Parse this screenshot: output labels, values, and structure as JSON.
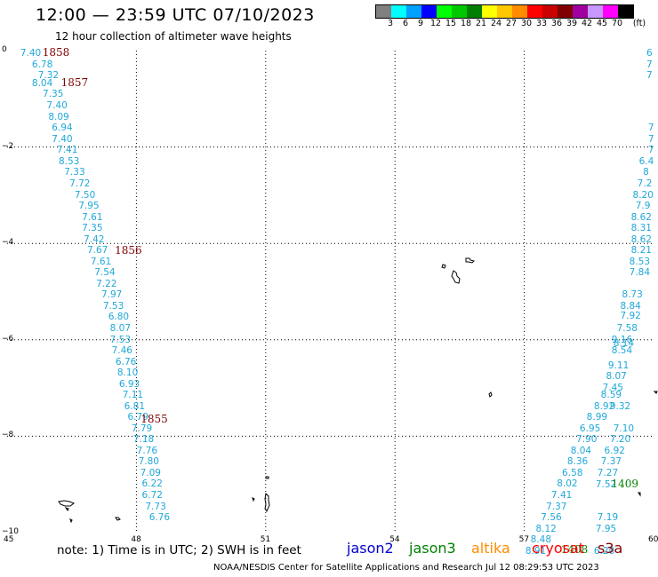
{
  "header": {
    "title": "12:00 — 23:59 UTC 07/10/2023",
    "subtitle": "12 hour collection of altimeter wave heights"
  },
  "legend": {
    "unit": "(ft)",
    "colors": [
      "#808080",
      "#00ffff",
      "#00a0ff",
      "#0000ff",
      "#00ff00",
      "#00c800",
      "#008000",
      "#ffff00",
      "#ffc800",
      "#ff8c00",
      "#ff0000",
      "#c80000",
      "#800000",
      "#a000a0",
      "#c896ff",
      "#ff00ff",
      "#000000"
    ],
    "labels": [
      "3",
      "6",
      "9",
      "12",
      "15",
      "18",
      "21",
      "24",
      "27",
      "30",
      "33",
      "36",
      "39",
      "42",
      "45",
      "70"
    ]
  },
  "axes": {
    "lon_min": 45,
    "lon_max": 60,
    "lat_min": -10,
    "lat_max": 0,
    "x_ticks": [
      "45",
      "48",
      "51",
      "54",
      "57",
      "60"
    ],
    "y_ticks": [
      "0",
      "−2",
      "−4",
      "−6",
      "−8",
      "−10"
    ]
  },
  "colors": {
    "jason2": "#0000cd",
    "jason3": "#008000",
    "altika": "#ff8c00",
    "cryosat": "#ff0000",
    "s3a": "#800000",
    "wave_cyan": "#20a8d8"
  },
  "track_west": {
    "color": "#20a8d8",
    "values": [
      {
        "lon": 45.57,
        "lat": -0.06,
        "v": "7.40"
      },
      {
        "lon": 45.84,
        "lat": -0.29,
        "v": "6.78"
      },
      {
        "lon": 45.98,
        "lat": -0.52,
        "v": "7.32"
      },
      {
        "lon": 45.84,
        "lat": -0.68,
        "v": "8.04"
      },
      {
        "lon": 46.09,
        "lat": -0.91,
        "v": "7.35"
      },
      {
        "lon": 46.18,
        "lat": -1.15,
        "v": "7.40"
      },
      {
        "lon": 46.22,
        "lat": -1.38,
        "v": "8.09"
      },
      {
        "lon": 46.3,
        "lat": -1.61,
        "v": "6.94"
      },
      {
        "lon": 46.3,
        "lat": -1.84,
        "v": "7.40"
      },
      {
        "lon": 46.42,
        "lat": -2.07,
        "v": "7.41"
      },
      {
        "lon": 46.46,
        "lat": -2.3,
        "v": "8.53"
      },
      {
        "lon": 46.59,
        "lat": -2.53,
        "v": "7.33"
      },
      {
        "lon": 46.71,
        "lat": -2.76,
        "v": "7.72"
      },
      {
        "lon": 46.83,
        "lat": -3.0,
        "v": "7.50"
      },
      {
        "lon": 46.92,
        "lat": -3.23,
        "v": "7.95"
      },
      {
        "lon": 47.0,
        "lat": -3.46,
        "v": "7.61"
      },
      {
        "lon": 47.0,
        "lat": -3.69,
        "v": "7.35"
      },
      {
        "lon": 47.04,
        "lat": -3.92,
        "v": "7.42"
      },
      {
        "lon": 47.12,
        "lat": -4.15,
        "v": "7.67"
      },
      {
        "lon": 47.2,
        "lat": -4.38,
        "v": "7.61"
      },
      {
        "lon": 47.29,
        "lat": -4.61,
        "v": "7.54"
      },
      {
        "lon": 47.33,
        "lat": -4.84,
        "v": "7.22"
      },
      {
        "lon": 47.45,
        "lat": -5.07,
        "v": "7.97"
      },
      {
        "lon": 47.49,
        "lat": -5.3,
        "v": "7.53"
      },
      {
        "lon": 47.61,
        "lat": -5.53,
        "v": "6.80"
      },
      {
        "lon": 47.65,
        "lat": -5.76,
        "v": "8.07"
      },
      {
        "lon": 47.65,
        "lat": -6.0,
        "v": "7.53"
      },
      {
        "lon": 47.69,
        "lat": -6.23,
        "v": "7.46"
      },
      {
        "lon": 47.78,
        "lat": -6.46,
        "v": "6.76"
      },
      {
        "lon": 47.82,
        "lat": -6.69,
        "v": "8.10"
      },
      {
        "lon": 47.86,
        "lat": -6.92,
        "v": "6.93"
      },
      {
        "lon": 47.94,
        "lat": -7.15,
        "v": "7.11"
      },
      {
        "lon": 47.98,
        "lat": -7.38,
        "v": "6.81"
      },
      {
        "lon": 48.06,
        "lat": -7.61,
        "v": "6.79"
      },
      {
        "lon": 48.15,
        "lat": -7.84,
        "v": "7.79"
      },
      {
        "lon": 48.19,
        "lat": -8.07,
        "v": "7.18"
      },
      {
        "lon": 48.27,
        "lat": -8.3,
        "v": "7.76"
      },
      {
        "lon": 48.31,
        "lat": -8.53,
        "v": "7.80"
      },
      {
        "lon": 48.35,
        "lat": -8.76,
        "v": "7.09"
      },
      {
        "lon": 48.39,
        "lat": -8.99,
        "v": "6.22"
      },
      {
        "lon": 48.39,
        "lat": -9.23,
        "v": "6.72"
      },
      {
        "lon": 48.47,
        "lat": -9.46,
        "v": "7.73"
      },
      {
        "lon": 48.56,
        "lat": -9.69,
        "v": "6.76"
      }
    ]
  },
  "track_east": {
    "color": "#20a8d8",
    "values": [
      {
        "lon": 59.9,
        "lat": -0.06,
        "v": "6"
      },
      {
        "lon": 59.9,
        "lat": -0.29,
        "v": "7"
      },
      {
        "lon": 59.9,
        "lat": -0.52,
        "v": "7"
      },
      {
        "lon": 59.94,
        "lat": -1.61,
        "v": "7"
      },
      {
        "lon": 59.94,
        "lat": -1.84,
        "v": "7"
      },
      {
        "lon": 59.94,
        "lat": -2.07,
        "v": "7"
      },
      {
        "lon": 59.86,
        "lat": -2.3,
        "v": "6.4"
      },
      {
        "lon": 59.82,
        "lat": -2.53,
        "v": "8"
      },
      {
        "lon": 59.82,
        "lat": -2.76,
        "v": "7.2"
      },
      {
        "lon": 59.78,
        "lat": -3.0,
        "v": "8.20"
      },
      {
        "lon": 59.78,
        "lat": -3.23,
        "v": "7.9"
      },
      {
        "lon": 59.74,
        "lat": -3.46,
        "v": "8.62"
      },
      {
        "lon": 59.74,
        "lat": -3.69,
        "v": "8.31"
      },
      {
        "lon": 59.74,
        "lat": -3.92,
        "v": "8.62"
      },
      {
        "lon": 59.74,
        "lat": -4.15,
        "v": "8.21"
      },
      {
        "lon": 59.7,
        "lat": -4.38,
        "v": "8.53"
      },
      {
        "lon": 59.7,
        "lat": -4.61,
        "v": "7.84"
      },
      {
        "lon": 59.53,
        "lat": -5.07,
        "v": "8.73"
      },
      {
        "lon": 59.49,
        "lat": -5.3,
        "v": "8.84"
      },
      {
        "lon": 59.49,
        "lat": -5.5,
        "v": "7.92"
      },
      {
        "lon": 59.41,
        "lat": -5.76,
        "v": "7.58"
      },
      {
        "lon": 59.29,
        "lat": -6.0,
        "v": "9.16"
      },
      {
        "lon": 59.29,
        "lat": -6.23,
        "v": "8.54"
      },
      {
        "lon": 59.21,
        "lat": -6.53,
        "v": "9.11"
      },
      {
        "lon": 59.16,
        "lat": -6.76,
        "v": "8.07"
      },
      {
        "lon": 59.08,
        "lat": -6.99,
        "v": "7.45"
      },
      {
        "lon": 59.04,
        "lat": -7.15,
        "v": "8.59"
      },
      {
        "lon": 58.88,
        "lat": -7.38,
        "v": "8.92"
      },
      {
        "lon": 58.71,
        "lat": -7.61,
        "v": "8.99"
      },
      {
        "lon": 58.55,
        "lat": -7.84,
        "v": "6.95"
      },
      {
        "lon": 58.47,
        "lat": -8.07,
        "v": "7.90"
      },
      {
        "lon": 58.34,
        "lat": -8.3,
        "v": "8.04"
      },
      {
        "lon": 58.26,
        "lat": -8.53,
        "v": "8.36"
      },
      {
        "lon": 58.14,
        "lat": -8.76,
        "v": "6.58"
      },
      {
        "lon": 58.02,
        "lat": -8.99,
        "v": "8.02"
      },
      {
        "lon": 57.89,
        "lat": -9.23,
        "v": "7.41"
      },
      {
        "lon": 57.77,
        "lat": -9.46,
        "v": "7.37"
      },
      {
        "lon": 57.65,
        "lat": -9.69,
        "v": "7.56"
      },
      {
        "lon": 57.53,
        "lat": -9.92,
        "v": "8.12"
      },
      {
        "lon": 57.41,
        "lat": -10.15,
        "v": "8.48"
      },
      {
        "lon": 57.29,
        "lat": -10.38,
        "v": "8.91"
      },
      {
        "lon": 59.33,
        "lat": -7.84,
        "v": "7.10"
      },
      {
        "lon": 59.25,
        "lat": -8.07,
        "v": "7.20"
      },
      {
        "lon": 59.12,
        "lat": -8.3,
        "v": "6.92"
      },
      {
        "lon": 59.04,
        "lat": -8.53,
        "v": "7.37"
      },
      {
        "lon": 58.96,
        "lat": -8.76,
        "v": "7.27"
      },
      {
        "lon": 58.92,
        "lat": -9.0,
        "v": "7.52"
      },
      {
        "lon": 58.96,
        "lat": -9.69,
        "v": "7.19"
      },
      {
        "lon": 58.92,
        "lat": -9.92,
        "v": "7.95"
      },
      {
        "lon": 58.88,
        "lat": -10.38,
        "v": "6.20"
      },
      {
        "lon": 59.33,
        "lat": -6.08,
        "v": "8.14"
      },
      {
        "lon": 59.25,
        "lat": -7.38,
        "v": "9.32"
      }
    ]
  },
  "time_labels": [
    {
      "lon": 45.82,
      "lat": -0.03,
      "t": "1858",
      "color": "#800000"
    },
    {
      "lon": 46.25,
      "lat": -0.67,
      "t": "1857",
      "color": "#800000"
    },
    {
      "lon": 47.5,
      "lat": -4.14,
      "t": "1856",
      "color": "#800000"
    },
    {
      "lon": 48.1,
      "lat": -7.64,
      "t": "1855",
      "color": "#800000"
    },
    {
      "lon": 59.02,
      "lat": -8.99,
      "t": "1409",
      "color": "#008000"
    },
    {
      "lon": 57.85,
      "lat": -10.35,
      "t": "1408",
      "color": "#008000"
    }
  ],
  "note": "note:  1) Time is in UTC;  2) SWH is in feet",
  "satellites": [
    {
      "name": "jason2",
      "color": "#0000cd"
    },
    {
      "name": "jason3",
      "color": "#008000"
    },
    {
      "name": "altika",
      "color": "#ff8c00"
    },
    {
      "name": "cryosat",
      "color": "#ff0000"
    },
    {
      "name": "s3a",
      "color": "#800000"
    }
  ],
  "footer": "NOAA/NESDIS Center for Satellite Applications and Research     Jul 12 08:29:53 UTC 2023"
}
